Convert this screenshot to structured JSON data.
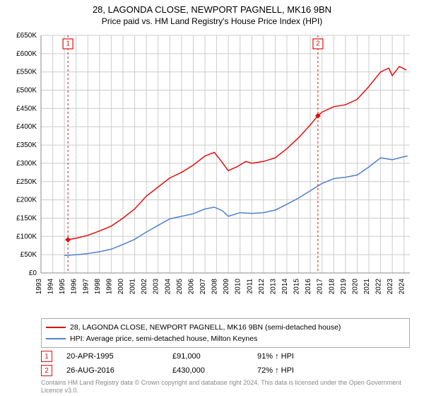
{
  "title_line1": "28, LAGONDA CLOSE, NEWPORT PAGNELL, MK16 9BN",
  "title_line2": "Price paid vs. HM Land Registry's House Price Index (HPI)",
  "chart": {
    "type": "line",
    "background_color": "#ffffff",
    "grid_color": "#cccccc",
    "axis_color": "#888888",
    "label_fontsize": 10,
    "y": {
      "min": 0,
      "max": 650000,
      "tick_step": 50000,
      "ticks": [
        "£0",
        "£50K",
        "£100K",
        "£150K",
        "£200K",
        "£250K",
        "£300K",
        "£350K",
        "£400K",
        "£450K",
        "£500K",
        "£550K",
        "£600K",
        "£650K"
      ]
    },
    "x": {
      "min": 1993,
      "max": 2024.5,
      "years": [
        1993,
        1994,
        1995,
        1996,
        1997,
        1998,
        1999,
        2000,
        2001,
        2002,
        2003,
        2004,
        2005,
        2006,
        2007,
        2008,
        2009,
        2010,
        2011,
        2012,
        2013,
        2014,
        2015,
        2016,
        2017,
        2018,
        2019,
        2020,
        2021,
        2022,
        2023,
        2024
      ]
    },
    "series": [
      {
        "name": "28, LAGONDA CLOSE, NEWPORT PAGNELL, MK16 9BN (semi-detached house)",
        "color": "#e01010",
        "line_width": 1.5,
        "points": [
          [
            1995.3,
            91000
          ],
          [
            1996,
            95000
          ],
          [
            1997,
            103000
          ],
          [
            1998,
            115000
          ],
          [
            1999,
            128000
          ],
          [
            2000,
            150000
          ],
          [
            2001,
            175000
          ],
          [
            2002,
            210000
          ],
          [
            2003,
            235000
          ],
          [
            2004,
            260000
          ],
          [
            2005,
            275000
          ],
          [
            2006,
            295000
          ],
          [
            2007,
            320000
          ],
          [
            2007.8,
            330000
          ],
          [
            2008.3,
            310000
          ],
          [
            2009,
            280000
          ],
          [
            2009.7,
            290000
          ],
          [
            2010.5,
            305000
          ],
          [
            2011,
            300000
          ],
          [
            2012,
            305000
          ],
          [
            2013,
            315000
          ],
          [
            2014,
            340000
          ],
          [
            2015,
            370000
          ],
          [
            2016,
            405000
          ],
          [
            2016.65,
            430000
          ],
          [
            2017,
            440000
          ],
          [
            2018,
            455000
          ],
          [
            2019,
            460000
          ],
          [
            2020,
            475000
          ],
          [
            2021,
            510000
          ],
          [
            2022,
            550000
          ],
          [
            2022.7,
            560000
          ],
          [
            2023,
            540000
          ],
          [
            2023.6,
            565000
          ],
          [
            2024.2,
            555000
          ]
        ]
      },
      {
        "name": "HPI: Average price, semi-detached house, Milton Keynes",
        "color": "#5080d0",
        "line_width": 1.2,
        "points": [
          [
            1995,
            48000
          ],
          [
            1996,
            50000
          ],
          [
            1997,
            53000
          ],
          [
            1998,
            58000
          ],
          [
            1999,
            65000
          ],
          [
            2000,
            78000
          ],
          [
            2001,
            92000
          ],
          [
            2002,
            112000
          ],
          [
            2003,
            130000
          ],
          [
            2004,
            148000
          ],
          [
            2005,
            155000
          ],
          [
            2006,
            162000
          ],
          [
            2007,
            175000
          ],
          [
            2007.8,
            180000
          ],
          [
            2008.5,
            170000
          ],
          [
            2009,
            155000
          ],
          [
            2010,
            165000
          ],
          [
            2011,
            163000
          ],
          [
            2012,
            165000
          ],
          [
            2013,
            172000
          ],
          [
            2014,
            188000
          ],
          [
            2015,
            205000
          ],
          [
            2016,
            225000
          ],
          [
            2017,
            245000
          ],
          [
            2018,
            258000
          ],
          [
            2019,
            262000
          ],
          [
            2020,
            268000
          ],
          [
            2021,
            290000
          ],
          [
            2022,
            315000
          ],
          [
            2023,
            310000
          ],
          [
            2024,
            318000
          ],
          [
            2024.3,
            320000
          ]
        ]
      }
    ],
    "markers": [
      {
        "num": "1",
        "year": 1995.3,
        "value": 91000,
        "label_y_offset": -30
      },
      {
        "num": "2",
        "year": 2016.65,
        "value": 430000,
        "label_y_offset": -30
      }
    ]
  },
  "legend": {
    "items": [
      {
        "color": "#e01010",
        "label": "28, LAGONDA CLOSE, NEWPORT PAGNELL, MK16 9BN (semi-detached house)"
      },
      {
        "color": "#5080d0",
        "label": "HPI: Average price, semi-detached house, Milton Keynes"
      }
    ]
  },
  "transactions": [
    {
      "num": "1",
      "date": "20-APR-1995",
      "price": "£91,000",
      "pct": "91% ↑ HPI"
    },
    {
      "num": "2",
      "date": "26-AUG-2016",
      "price": "£430,000",
      "pct": "72% ↑ HPI"
    }
  ],
  "footer": "Contains HM Land Registry data © Crown copyright and database right 2024. This data is licensed under the Open Government Licence v3.0."
}
